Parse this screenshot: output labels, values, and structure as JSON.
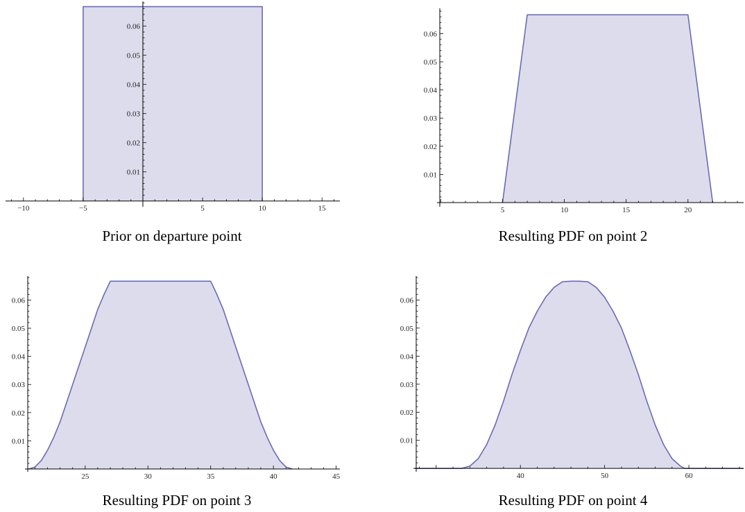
{
  "colors": {
    "fill": "#dcdcec",
    "line": "#6b6bb5",
    "axis": "#000000"
  },
  "chart_data": [
    {
      "type": "area",
      "caption": "Prior on departure point",
      "xlim": [
        -11.5,
        16.5
      ],
      "ylim": [
        -0.0015,
        0.0685
      ],
      "x_ticks": [
        -10,
        -5,
        5,
        10,
        15
      ],
      "x_tick_labels": [
        "−10",
        "−5",
        "5",
        "10",
        "15"
      ],
      "y_ticks": [
        0.01,
        0.02,
        0.03,
        0.04,
        0.05,
        0.06
      ],
      "y_tick_labels": [
        "0.01",
        "0.02",
        "0.03",
        "0.04",
        "0.05",
        "0.06"
      ],
      "series": [
        {
          "x": [
            -5,
            -5,
            10,
            10
          ],
          "y": [
            0,
            0.0667,
            0.0667,
            0
          ]
        }
      ]
    },
    {
      "type": "area",
      "caption": "Resulting PDF on point 2",
      "xlim": [
        -0.3,
        24.5
      ],
      "ylim": [
        -0.001,
        0.069
      ],
      "x_ticks": [
        5,
        10,
        15,
        20
      ],
      "x_tick_labels": [
        "5",
        "10",
        "15",
        "20"
      ],
      "y_ticks": [
        0.01,
        0.02,
        0.03,
        0.04,
        0.05,
        0.06
      ],
      "y_tick_labels": [
        "0.01",
        "0.02",
        "0.03",
        "0.04",
        "0.05",
        "0.06"
      ],
      "series": [
        {
          "x": [
            5,
            7,
            20,
            22
          ],
          "y": [
            0,
            0.0667,
            0.0667,
            0
          ]
        }
      ]
    },
    {
      "type": "area",
      "caption": "Resulting PDF on point 3",
      "xlim": [
        20.2,
        45.3
      ],
      "ylim": [
        -0.0005,
        0.0685
      ],
      "x_ticks": [
        25,
        30,
        35,
        40,
        45
      ],
      "x_tick_labels": [
        "25",
        "30",
        "35",
        "40",
        "45"
      ],
      "y_ticks": [
        0.01,
        0.02,
        0.03,
        0.04,
        0.05,
        0.06
      ],
      "y_tick_labels": [
        "0.01",
        "0.02",
        "0.03",
        "0.04",
        "0.05",
        "0.06"
      ],
      "series": [
        {
          "x": [
            20.5,
            21,
            21.5,
            22,
            22.5,
            23,
            24,
            25,
            26,
            26.5,
            27,
            30,
            33,
            35,
            35.5,
            36,
            37,
            38,
            39,
            39.5,
            40,
            40.5,
            41,
            41.5
          ],
          "y": [
            0,
            0.0007,
            0.003,
            0.0067,
            0.0113,
            0.0167,
            0.03,
            0.0433,
            0.0567,
            0.062,
            0.0667,
            0.0667,
            0.0667,
            0.0667,
            0.062,
            0.0567,
            0.0433,
            0.03,
            0.0167,
            0.0113,
            0.0067,
            0.003,
            0.0007,
            0
          ]
        }
      ]
    },
    {
      "type": "area",
      "caption": "Resulting PDF on point 4",
      "xlim": [
        27.3,
        66.5
      ],
      "ylim": [
        -0.0007,
        0.0685
      ],
      "x_ticks": [
        40,
        50,
        60
      ],
      "x_tick_labels": [
        "40",
        "50",
        "60"
      ],
      "y_ticks": [
        0.01,
        0.02,
        0.03,
        0.04,
        0.05,
        0.06
      ],
      "y_tick_labels": [
        "0.01",
        "0.02",
        "0.03",
        "0.04",
        "0.05",
        "0.06"
      ],
      "series": [
        {
          "x": [
            27.5,
            33,
            34,
            35,
            36,
            37,
            38,
            39,
            40,
            41,
            42,
            43,
            44,
            45,
            46,
            47,
            48,
            49,
            50,
            51,
            52,
            53,
            54,
            55,
            56,
            57,
            58,
            59,
            59.5,
            66.5
          ],
          "y": [
            0,
            0,
            0.0008,
            0.0035,
            0.0085,
            0.0155,
            0.024,
            0.0335,
            0.042,
            0.05,
            0.056,
            0.061,
            0.0645,
            0.0665,
            0.0667,
            0.0667,
            0.0665,
            0.0645,
            0.061,
            0.056,
            0.05,
            0.042,
            0.0335,
            0.024,
            0.0155,
            0.0085,
            0.0035,
            0.0008,
            0,
            0
          ]
        }
      ]
    }
  ]
}
